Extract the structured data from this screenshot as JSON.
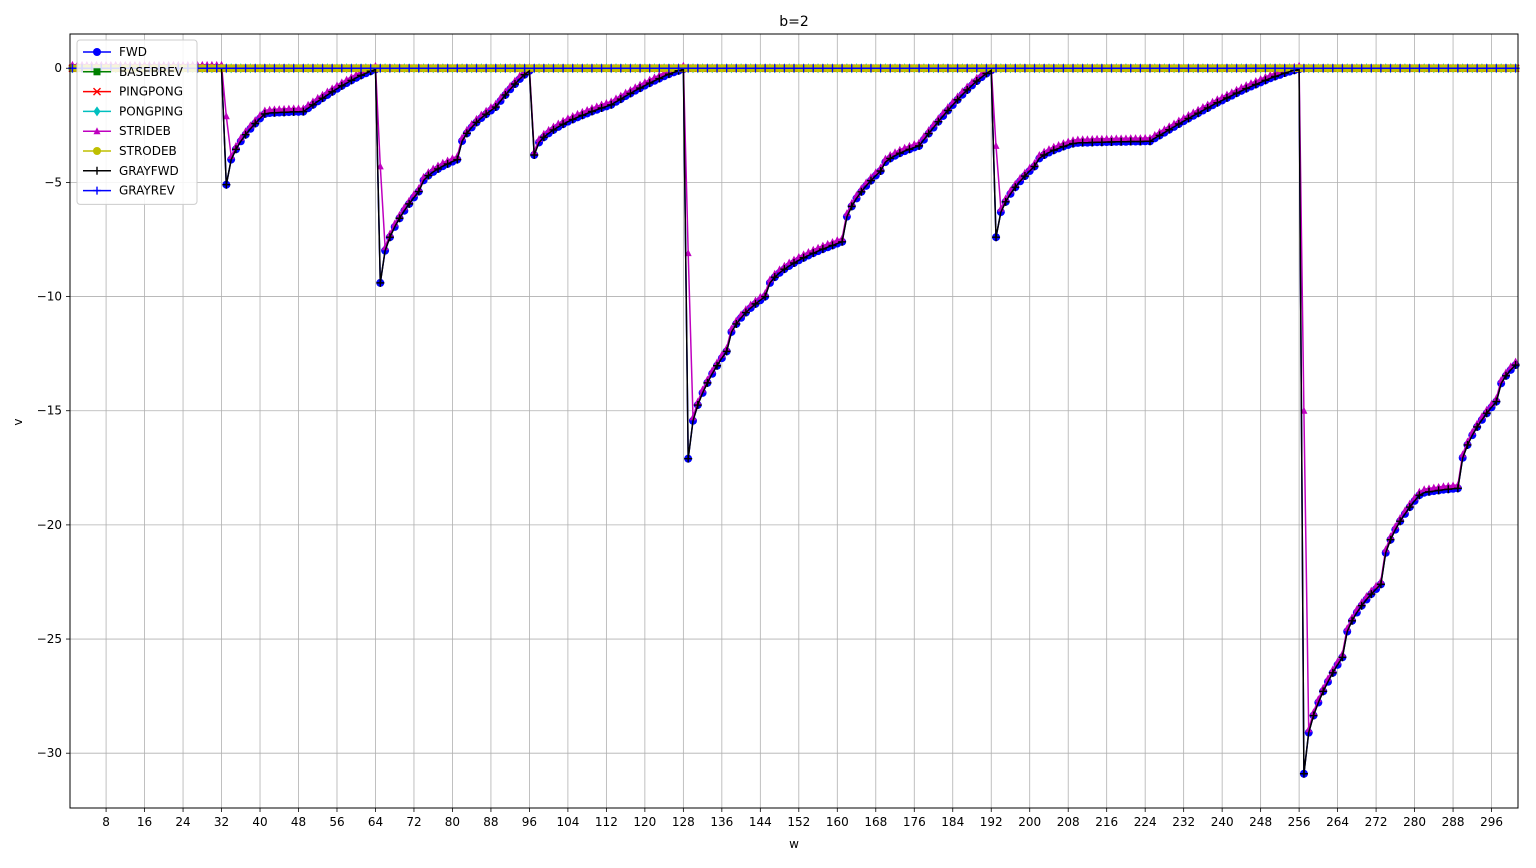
{
  "chart_data": {
    "type": "line",
    "title": "b=2",
    "xlabel": "w",
    "ylabel": "v",
    "xlim": [
      0.5,
      301.5
    ],
    "ylim": [
      -32.4,
      1.5
    ],
    "x_ticks": [
      8,
      16,
      24,
      32,
      40,
      48,
      56,
      64,
      72,
      80,
      88,
      96,
      104,
      112,
      120,
      128,
      136,
      144,
      152,
      160,
      168,
      176,
      184,
      192,
      200,
      208,
      216,
      224,
      232,
      240,
      248,
      256,
      264,
      272,
      280,
      288,
      296
    ],
    "y_ticks": [
      0,
      -5,
      -10,
      -15,
      -20,
      -25,
      -30
    ],
    "grid": true,
    "legend_position": "upper-left",
    "series": [
      {
        "name": "FWD",
        "color": "#0000ff",
        "marker": "o"
      },
      {
        "name": "BASEBREV",
        "color": "#008000",
        "marker": "s"
      },
      {
        "name": "PINGPONG",
        "color": "#ff0000",
        "marker": "x"
      },
      {
        "name": "PONGPING",
        "color": "#00bfbf",
        "marker": "d"
      },
      {
        "name": "STRIDEB",
        "color": "#bf00bf",
        "marker": "^"
      },
      {
        "name": "STRODEB",
        "color": "#bfbf00",
        "marker": "o"
      },
      {
        "name": "GRAYFWD",
        "color": "#000000",
        "marker": "+"
      },
      {
        "name": "GRAYREV",
        "color": "#0000ff",
        "marker": "+"
      }
    ],
    "curve_model": "piecewise recovery from drops: w=1..301; flat series BASEBREV/PINGPONG/PONGPING/STRODEB/GRAYREV stay at 0",
    "key_points": {
      "FWD": [
        [
          33,
          -5.1
        ],
        [
          41,
          -2.0
        ],
        [
          49,
          -1.9
        ],
        [
          65,
          -9.4
        ],
        [
          73,
          -5.4
        ],
        [
          81,
          -4.0
        ],
        [
          89,
          -1.7
        ],
        [
          97,
          -3.8
        ],
        [
          113,
          -1.6
        ],
        [
          129,
          -17.1
        ],
        [
          137,
          -12.4
        ],
        [
          145,
          -10.0
        ],
        [
          161,
          -7.6
        ],
        [
          169,
          -4.5
        ],
        [
          177,
          -3.4
        ],
        [
          193,
          -7.4
        ],
        [
          201,
          -4.3
        ],
        [
          209,
          -3.3
        ],
        [
          225,
          -3.2
        ],
        [
          257,
          -30.9
        ],
        [
          265,
          -25.8
        ],
        [
          273,
          -22.6
        ],
        [
          281,
          -18.7
        ],
        [
          289,
          -18.4
        ],
        [
          297,
          -14.6
        ],
        [
          301,
          -13.0
        ]
      ],
      "STRIDEB": [
        [
          33,
          -2.1
        ],
        [
          65,
          -4.3
        ],
        [
          129,
          -8.1
        ],
        [
          193,
          -3.4
        ],
        [
          257,
          -15.0
        ]
      ]
    }
  }
}
